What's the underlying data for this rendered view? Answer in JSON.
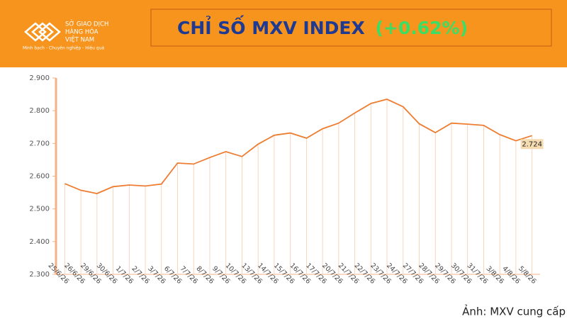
{
  "header": {
    "logo_lines": [
      "SỞ GIAO DỊCH",
      "HÀNG HÓA",
      "VIỆT NAM"
    ],
    "tagline": "Minh bạch - Chuyên nghiệp - Hiệu quả",
    "title": "CHỈ SỐ MXV INDEX",
    "change": "(+0.62%)"
  },
  "chart_data": {
    "type": "line",
    "categories": [
      "25/6/26",
      "26/6/26",
      "29/6/26",
      "30/6/26",
      "1/7/26",
      "2/7/26",
      "3/7/26",
      "6/7/26",
      "7/7/26",
      "8/7/26",
      "9/7/26",
      "10/7/26",
      "13/7/26",
      "14/7/26",
      "15/7/26",
      "16/7/26",
      "17/7/26",
      "20/7/26",
      "21/7/26",
      "22/7/26",
      "23/7/26",
      "24/7/26",
      "27/7/26",
      "28/7/26",
      "29/7/26",
      "30/7/26",
      "31/7/26",
      "3/8/26",
      "4/8/26",
      "5/8/26"
    ],
    "values": [
      2577,
      2557,
      2547,
      2568,
      2573,
      2570,
      2576,
      2640,
      2637,
      2657,
      2675,
      2660,
      2698,
      2725,
      2732,
      2716,
      2745,
      2762,
      2793,
      2822,
      2835,
      2812,
      2760,
      2733,
      2762,
      2759,
      2755,
      2727,
      2708,
      2724
    ],
    "value_labels": [
      null,
      null,
      null,
      null,
      null,
      null,
      null,
      null,
      null,
      null,
      null,
      null,
      null,
      null,
      null,
      null,
      null,
      null,
      null,
      null,
      null,
      null,
      null,
      null,
      null,
      null,
      null,
      null,
      null,
      "2.724"
    ],
    "color": "#ed7d31",
    "ylim": [
      2300,
      2900
    ],
    "yticks": [
      {
        "value": 2300,
        "label": "2.300"
      },
      {
        "value": 2400,
        "label": "2.400"
      },
      {
        "value": 2500,
        "label": "2.500"
      },
      {
        "value": 2600,
        "label": "2.600"
      },
      {
        "value": 2700,
        "label": "2.700"
      },
      {
        "value": 2800,
        "label": "2.800"
      },
      {
        "value": 2900,
        "label": "2.900"
      }
    ],
    "grid": false
  },
  "caption": "Ảnh: MXV cung cấp"
}
